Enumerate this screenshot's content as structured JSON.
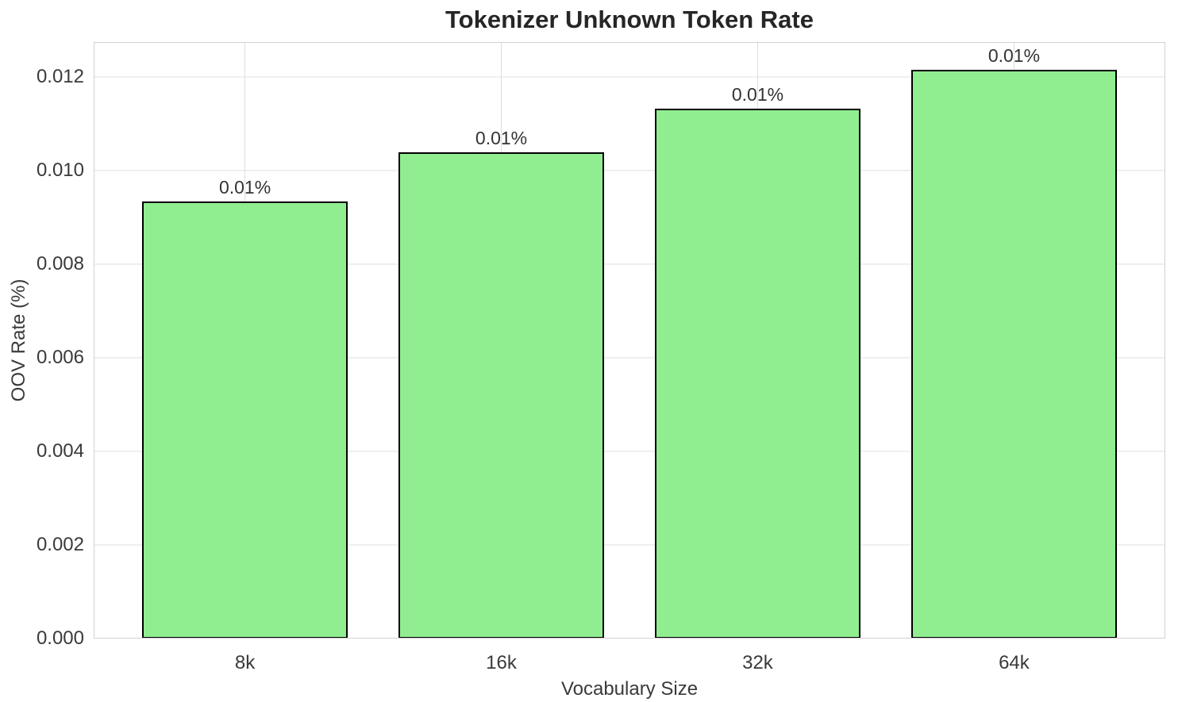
{
  "chart_data": {
    "type": "bar",
    "title": "Tokenizer Unknown Token Rate",
    "xlabel": "Vocabulary Size",
    "ylabel": "OOV Rate (%)",
    "categories": [
      "8k",
      "16k",
      "32k",
      "64k"
    ],
    "values": [
      0.00934,
      0.01039,
      0.01132,
      0.01215
    ],
    "bar_labels": [
      "0.01%",
      "0.01%",
      "0.01%",
      "0.01%"
    ],
    "ylim": [
      0,
      0.012746
    ],
    "ytick_values": [
      0,
      0.002,
      0.004,
      0.006,
      0.008,
      0.01,
      0.012
    ],
    "ytick_labels": [
      "0.000",
      "0.002",
      "0.004",
      "0.006",
      "0.008",
      "0.010",
      "0.012"
    ],
    "xlim": [
      -0.59,
      3.59
    ],
    "bar_width_data_units": 0.8,
    "grid": true,
    "legend": "none",
    "colors": {
      "bar_fill": "#90EE90",
      "bar_edge": "#000000",
      "grid_horizontal": "#efefef",
      "grid_vertical": "#dedede",
      "spine": "#d2d2d2",
      "title_text": "#262626",
      "tick_text": "#3a3a3a",
      "background": "#ffffff"
    }
  }
}
